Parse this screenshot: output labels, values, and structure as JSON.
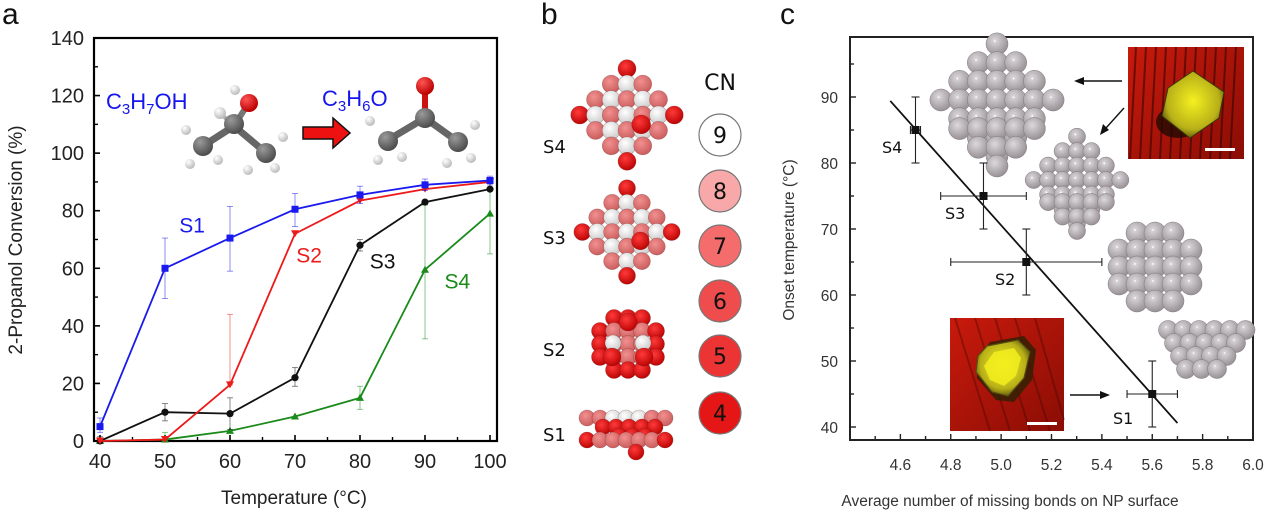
{
  "figure": {
    "panels": {
      "a": {
        "letter": "a"
      },
      "b": {
        "letter": "b"
      },
      "c": {
        "letter": "c"
      }
    }
  },
  "colors": {
    "S1": "#1a1aee",
    "S2": "#ee1a1a",
    "S3": "#111111",
    "S4": "#1a8a1a",
    "formula": "#1515ee",
    "arrow_red": "#ee1111",
    "oxygen": "#dd1111",
    "carbon": "#666666",
    "hydrogen": "#eeeeee",
    "np_grey": "#b8b2b6"
  },
  "panel_a": {
    "reaction": {
      "reactant": {
        "base": "C",
        "c": "3",
        "h": "H",
        "hn": "7",
        "tail": "OH"
      },
      "product": {
        "base": "C",
        "c": "3",
        "h": "H",
        "hn": "6",
        "tail": "O"
      },
      "arrow": "reaction-arrow"
    }
  },
  "panel_b": {
    "cn_title": "CN",
    "cn_legend": [
      {
        "value": "9",
        "color": "#ffffff"
      },
      {
        "value": "8",
        "color": "#f8a8a8"
      },
      {
        "value": "7",
        "color": "#f46c6c"
      },
      {
        "value": "6",
        "color": "#ef4d4d"
      },
      {
        "value": "5",
        "color": "#ec3434"
      },
      {
        "value": "4",
        "color": "#e51616"
      }
    ],
    "samples": [
      {
        "label": "S4",
        "shape": "octahedron-large"
      },
      {
        "label": "S3",
        "shape": "octahedron-small"
      },
      {
        "label": "S2",
        "shape": "cuboctahedron"
      },
      {
        "label": "S1",
        "shape": "truncated-pyramid"
      }
    ]
  },
  "panel_c": {
    "sample_labels": [
      "S4",
      "S3",
      "S2",
      "S1"
    ],
    "insets": [
      "tem-image-octahedron",
      "tem-image-truncated"
    ]
  },
  "chart_data": [
    {
      "id": "a",
      "type": "line",
      "title": "",
      "xlabel": "Temperature (°C)",
      "ylabel": "2-Propanol Conversion (%)",
      "xlim": [
        40,
        100
      ],
      "ylim": [
        0,
        140
      ],
      "xticks": [
        40,
        50,
        60,
        70,
        80,
        90,
        100
      ],
      "yticks": [
        0,
        20,
        40,
        60,
        80,
        100,
        120,
        140
      ],
      "x": [
        40,
        50,
        60,
        70,
        80,
        90,
        100
      ],
      "grid": false,
      "series": [
        {
          "name": "S1",
          "marker": "square",
          "values": [
            5,
            60,
            70.5,
            80.5,
            85.5,
            89,
            90.5
          ],
          "err_low": [
            3,
            49.5,
            59,
            74.5,
            82.5,
            87,
            89
          ],
          "err_high": [
            8,
            70.5,
            81.5,
            86,
            88.5,
            91,
            92
          ]
        },
        {
          "name": "S2",
          "marker": "triangle-down",
          "values": [
            0,
            0.5,
            19.5,
            72,
            83.5,
            87.5,
            90
          ],
          "err_low": [
            0,
            0,
            19.5,
            72,
            83.5,
            87.5,
            90
          ],
          "err_high": [
            0,
            0.5,
            44,
            72,
            83.5,
            87.5,
            90
          ]
        },
        {
          "name": "S3",
          "marker": "circle",
          "values": [
            0,
            10,
            9.5,
            22,
            68,
            83,
            87.5
          ],
          "err_low": [
            0,
            7,
            4,
            19,
            66,
            83,
            87.5
          ],
          "err_high": [
            1.5,
            13,
            15,
            25.5,
            70,
            83,
            87.5
          ]
        },
        {
          "name": "S4",
          "marker": "triangle-up",
          "values": [
            0,
            0.5,
            3.5,
            8.5,
            15,
            59.5,
            79
          ],
          "err_low": [
            0,
            0,
            3.5,
            8.5,
            11,
            35.5,
            65
          ],
          "err_high": [
            0,
            3,
            3.5,
            8.5,
            19,
            82,
            90
          ]
        }
      ],
      "annotations": [
        {
          "text": "S1",
          "x": 52.2,
          "y": 72.5,
          "series": "S1"
        },
        {
          "text": "S2",
          "x": 70.2,
          "y": 62,
          "series": "S2"
        },
        {
          "text": "S3",
          "x": 81.5,
          "y": 60,
          "series": "S3"
        },
        {
          "text": "S4",
          "x": 93,
          "y": 53,
          "series": "S4"
        }
      ]
    },
    {
      "id": "c",
      "type": "scatter",
      "title": "",
      "xlabel": "Average number of missing bonds on NP surface",
      "ylabel": "Onset temperature (°C)",
      "xlim": [
        4.4,
        6.0
      ],
      "ylim": [
        38,
        99
      ],
      "xticks": [
        4.6,
        4.8,
        5.0,
        5.2,
        5.4,
        5.6,
        5.8,
        6.0
      ],
      "yticks": [
        40,
        50,
        60,
        70,
        80,
        90
      ],
      "grid": false,
      "points": [
        {
          "name": "S4",
          "x": 4.66,
          "y": 85,
          "xerr": 0.02,
          "yerr": 5
        },
        {
          "name": "S3",
          "x": 4.93,
          "y": 75,
          "xerr": 0.17,
          "yerr": 5
        },
        {
          "name": "S2",
          "x": 5.1,
          "y": 65,
          "xerr": 0.3,
          "yerr": 5
        },
        {
          "name": "S1",
          "x": 5.6,
          "y": 45,
          "xerr": 0.1,
          "yerr": 5
        }
      ],
      "fit_line": {
        "x": [
          4.56,
          5.7
        ],
        "y": [
          89.4,
          40.6
        ]
      }
    }
  ]
}
